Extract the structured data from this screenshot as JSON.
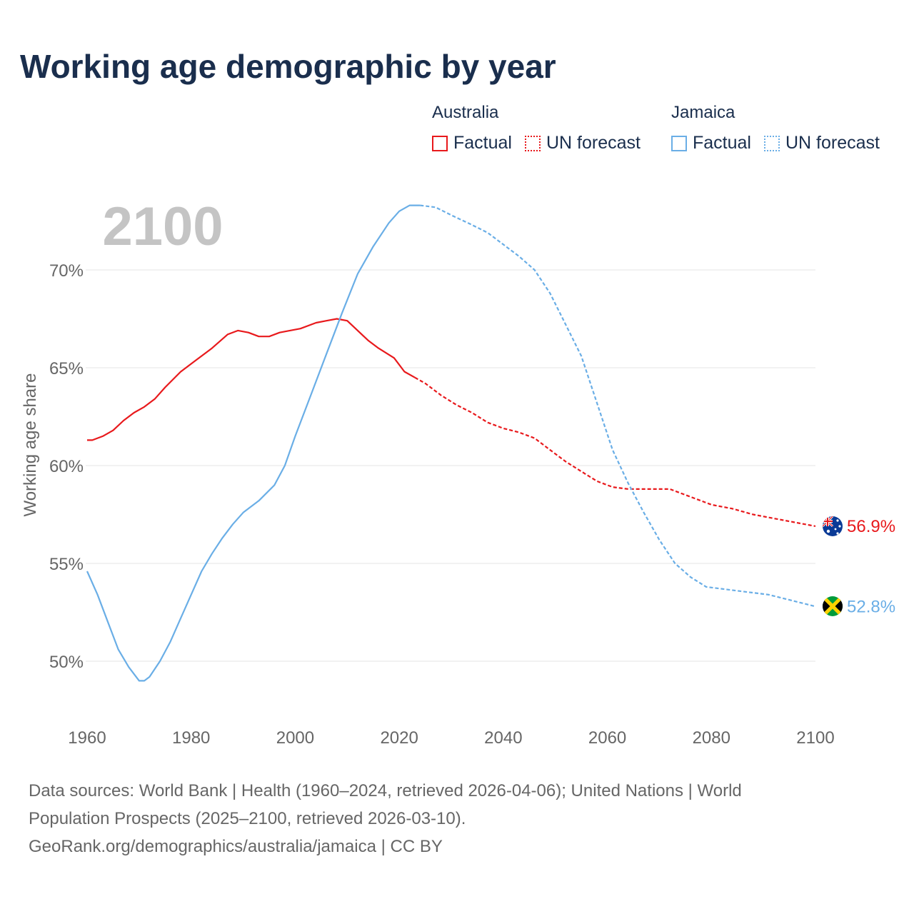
{
  "chart_data": {
    "type": "line",
    "title": "Working age demographic by year",
    "ylabel": "Working age share",
    "xlabel": "",
    "xlim": [
      1960,
      2100
    ],
    "ylim": [
      47.5,
      73.5
    ],
    "x_ticks": [
      1960,
      1980,
      2000,
      2020,
      2040,
      2060,
      2080,
      2100
    ],
    "y_ticks": [
      50,
      55,
      60,
      65,
      70
    ],
    "y_tick_labels": [
      "50%",
      "55%",
      "60%",
      "65%",
      "70%"
    ],
    "year_watermark": "2100",
    "legend": {
      "groups": [
        {
          "name": "Australia",
          "items": [
            {
              "label": "Factual",
              "style": "solid",
              "color": "#e8191c"
            },
            {
              "label": "UN forecast",
              "style": "dotted",
              "color": "#e8191c"
            }
          ]
        },
        {
          "name": "Jamaica",
          "items": [
            {
              "label": "Factual",
              "style": "solid",
              "color": "#6aaee6"
            },
            {
              "label": "UN forecast",
              "style": "dotted",
              "color": "#6aaee6"
            }
          ]
        }
      ]
    },
    "series": [
      {
        "name": "Australia",
        "color": "#e8191c",
        "factual_end": 2024,
        "end_label": "56.9%",
        "x": [
          1960,
          1961,
          1963,
          1965,
          1967,
          1969,
          1971,
          1973,
          1975,
          1978,
          1981,
          1984,
          1987,
          1989,
          1991,
          1993,
          1995,
          1997,
          1999,
          2001,
          2004,
          2006,
          2008,
          2010,
          2012,
          2014,
          2016,
          2019,
          2021,
          2023,
          2025,
          2028,
          2031,
          2034,
          2037,
          2040,
          2043,
          2046,
          2049,
          2052,
          2055,
          2058,
          2061,
          2064,
          2067,
          2070,
          2072,
          2076,
          2080,
          2084,
          2088,
          2092,
          2096,
          2100
        ],
        "values": [
          61.3,
          61.3,
          61.5,
          61.8,
          62.3,
          62.7,
          63.0,
          63.4,
          64.0,
          64.8,
          65.4,
          66.0,
          66.7,
          66.9,
          66.8,
          66.6,
          66.6,
          66.8,
          66.9,
          67.0,
          67.3,
          67.4,
          67.5,
          67.4,
          66.9,
          66.4,
          66.0,
          65.5,
          64.8,
          64.5,
          64.2,
          63.6,
          63.1,
          62.7,
          62.2,
          61.9,
          61.7,
          61.4,
          60.8,
          60.2,
          59.7,
          59.2,
          58.9,
          58.8,
          58.8,
          58.8,
          58.8,
          58.4,
          58.0,
          57.8,
          57.5,
          57.3,
          57.1,
          56.9
        ]
      },
      {
        "name": "Jamaica",
        "color": "#6aaee6",
        "factual_end": 2024,
        "end_label": "52.8%",
        "x": [
          1960,
          1962,
          1964,
          1966,
          1968,
          1970,
          1971,
          1972,
          1974,
          1976,
          1978,
          1980,
          1982,
          1984,
          1986,
          1988,
          1990,
          1993,
          1996,
          1998,
          2000,
          2003,
          2006,
          2009,
          2012,
          2015,
          2018,
          2020,
          2022,
          2024,
          2027,
          2030,
          2034,
          2037,
          2040,
          2043,
          2046,
          2049,
          2052,
          2055,
          2058,
          2061,
          2064,
          2067,
          2070,
          2073,
          2076,
          2079,
          2082,
          2085,
          2088,
          2091,
          2094,
          2097,
          2100
        ],
        "values": [
          54.6,
          53.4,
          52.0,
          50.6,
          49.7,
          49.0,
          49.0,
          49.2,
          50.0,
          51.0,
          52.2,
          53.4,
          54.6,
          55.5,
          56.3,
          57.0,
          57.6,
          58.2,
          59.0,
          60.0,
          61.5,
          63.6,
          65.7,
          67.8,
          69.8,
          71.2,
          72.4,
          73.0,
          73.3,
          73.3,
          73.2,
          72.8,
          72.3,
          71.9,
          71.3,
          70.7,
          70.0,
          68.8,
          67.2,
          65.6,
          63.2,
          60.8,
          59.1,
          57.6,
          56.2,
          55.0,
          54.3,
          53.8,
          53.7,
          53.6,
          53.5,
          53.4,
          53.2,
          53.0,
          52.8
        ]
      }
    ]
  },
  "footer": {
    "line1": "Data sources: World Bank | Health (1960–2024, retrieved 2026-04-06); United Nations | World",
    "line2": "Population Prospects (2025–2100, retrieved 2026-03-10).",
    "line3": "GeoRank.org/demographics/australia/jamaica | CC BY"
  },
  "colors": {
    "title": "#1a2e4d",
    "grid": "#e6e6e6",
    "axis_text": "#666666",
    "watermark": "#c4c4c4",
    "australia": "#e8191c",
    "jamaica": "#6aaee6"
  }
}
